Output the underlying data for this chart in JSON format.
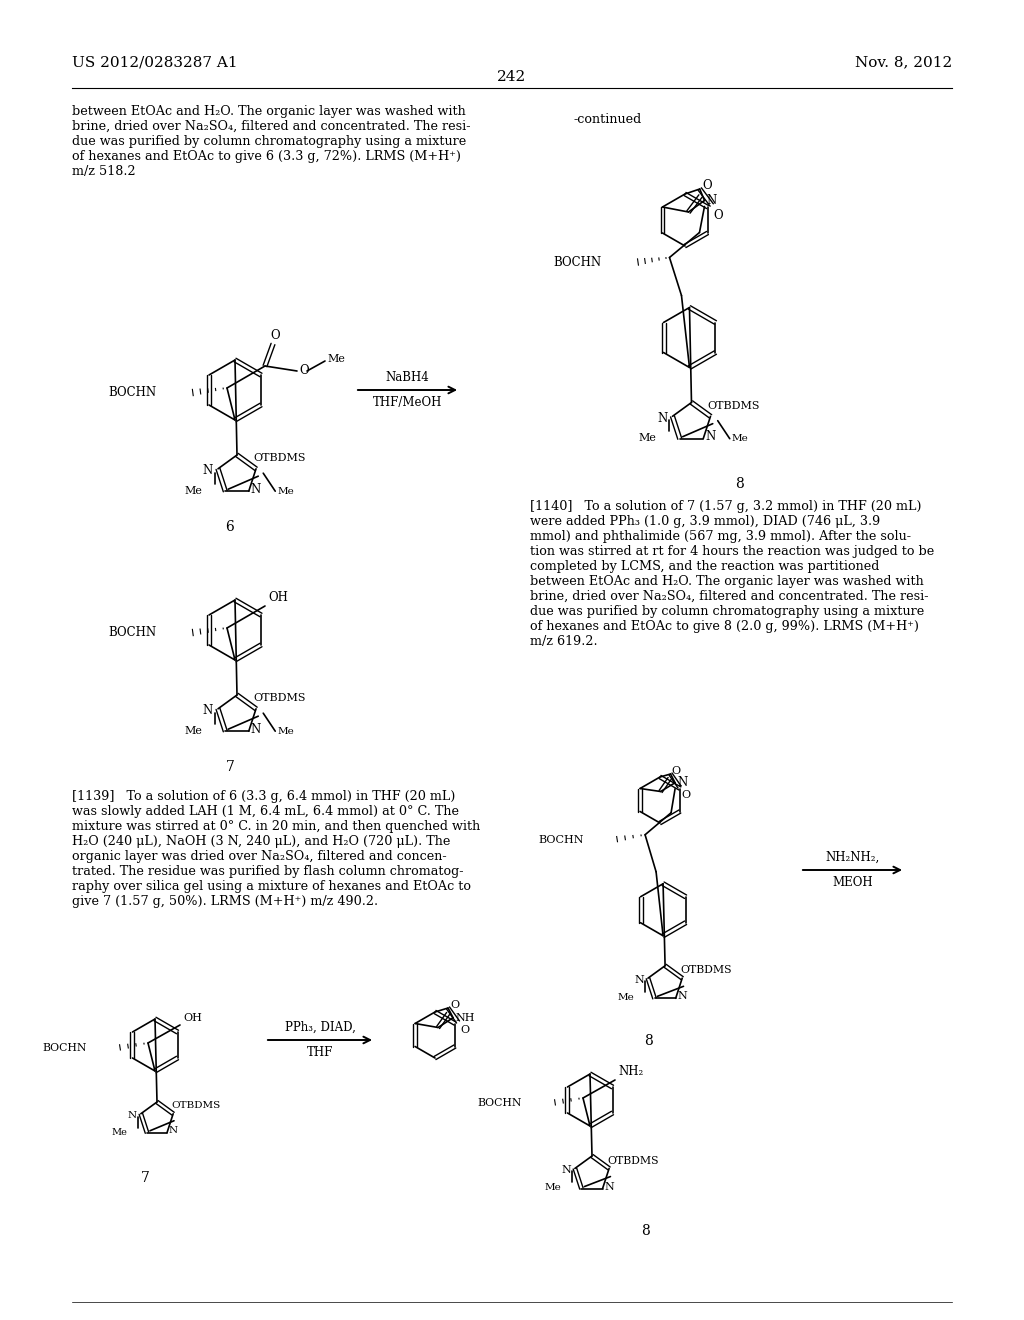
{
  "bg_color": "#ffffff",
  "header_left": "US 2012/0283287 A1",
  "header_right": "Nov. 8, 2012",
  "page_number": "242",
  "text_left_top": "between EtOAc and H₂O. The organic layer was washed with\nbrine, dried over Na₂SO₄, filtered and concentrated. The resi-\ndue was purified by column chromatography using a mixture\nof hexanes and EtOAc to give 6 (3.3 g, 72%). LRMS (M+H⁺)\nm/z 518.2",
  "continued": "-continued",
  "nabh4_top": "NaBH4",
  "nabh4_bot": "THF/MeOH",
  "pph3_top": "PPh₃, DIAD,",
  "pph3_bot": "THF",
  "nh2nh2_top": "NH₂NH₂,",
  "nh2nh2_bot": "MEOH",
  "lbl6": "6",
  "lbl7_left": "7",
  "lbl7_bot": "7",
  "lbl8_right": "8",
  "lbl8_bot": "8",
  "lbl8_botright": "8",
  "text1139": "[1139]   To a solution of 6 (3.3 g, 6.4 mmol) in THF (20 mL)\nwas slowly added LAH (1 M, 6.4 mL, 6.4 mmol) at 0° C. The\nmixture was stirred at 0° C. in 20 min, and then quenched with\nH₂O (240 μL), NaOH (3 N, 240 μL), and H₂O (720 μL). The\norganic layer was dried over Na₂SO₄, filtered and concen-\ntrated. The residue was purified by flash column chromatog-\nraphy over silica gel using a mixture of hexanes and EtOAc to\ngive 7 (1.57 g, 50%). LRMS (M+H⁺) m/z 490.2.",
  "text1140": "[1140]   To a solution of 7 (1.57 g, 3.2 mmol) in THF (20 mL)\nwere added PPh₃ (1.0 g, 3.9 mmol), DIAD (746 μL, 3.9\nmmol) and phthalimide (567 mg, 3.9 mmol). After the solu-\ntion was stirred at rt for 4 hours the reaction was judged to be\ncompleted by LCMS, and the reaction was partitioned\nbetween EtOAc and H₂O. The organic layer was washed with\nbrine, dried over Na₂SO₄, filtered and concentrated. The resi-\ndue was purified by column chromatography using a mixture\nof hexanes and EtOAc to give 8 (2.0 g, 99%). LRMS (M+H⁺)\nm/z 619.2."
}
